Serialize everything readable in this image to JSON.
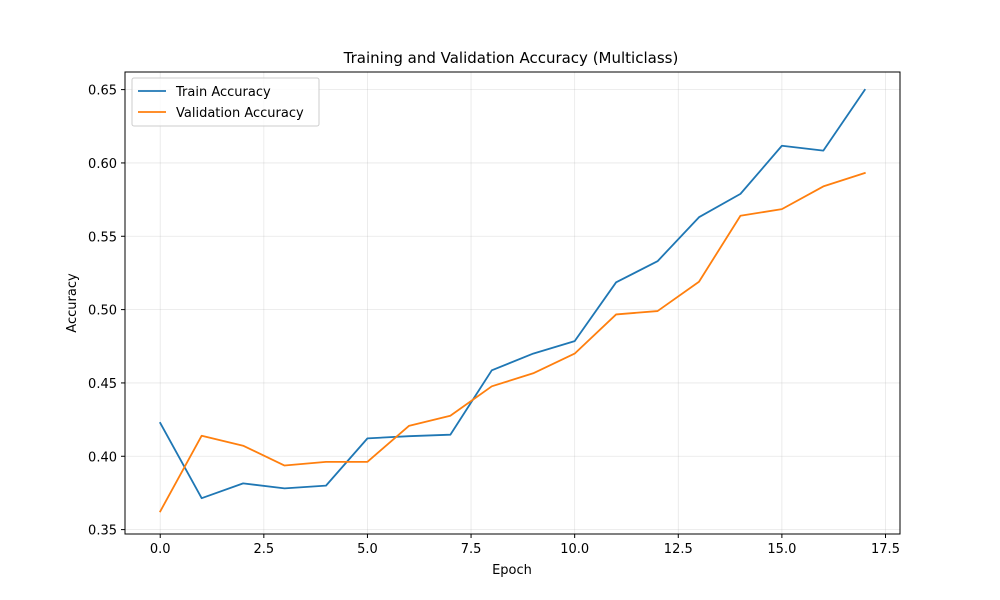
{
  "chart_data": {
    "type": "line",
    "title": "Training and Validation Accuracy (Multiclass)",
    "xlabel": "Epoch",
    "ylabel": "Accuracy",
    "xlim": [
      -0.85,
      17.85
    ],
    "ylim": [
      0.347,
      0.662
    ],
    "xticks": [
      0.0,
      2.5,
      5.0,
      7.5,
      10.0,
      12.5,
      15.0,
      17.5
    ],
    "xtick_labels": [
      "0.0",
      "2.5",
      "5.0",
      "7.5",
      "10.0",
      "12.5",
      "15.0",
      "17.5"
    ],
    "yticks": [
      0.35,
      0.4,
      0.45,
      0.5,
      0.55,
      0.6,
      0.65
    ],
    "ytick_labels": [
      "0.35",
      "0.40",
      "0.45",
      "0.50",
      "0.55",
      "0.60",
      "0.65"
    ],
    "grid": true,
    "legend_position": "upper-left",
    "x": [
      0,
      1,
      2,
      3,
      4,
      5,
      6,
      7,
      8,
      9,
      10,
      11,
      12,
      13,
      14,
      15,
      16,
      17
    ],
    "series": [
      {
        "name": "Train Accuracy",
        "color": "#1f77b4",
        "values": [
          0.4227,
          0.3714,
          0.3815,
          0.3781,
          0.38,
          0.4122,
          0.4137,
          0.4147,
          0.4586,
          0.47,
          0.4785,
          0.5186,
          0.533,
          0.563,
          0.5789,
          0.6117,
          0.6084,
          0.6498
        ]
      },
      {
        "name": "Validation Accuracy",
        "color": "#ff7f0e",
        "values": [
          0.3624,
          0.414,
          0.4072,
          0.3937,
          0.3962,
          0.3962,
          0.4207,
          0.4276,
          0.4477,
          0.4566,
          0.47,
          0.4967,
          0.499,
          0.519,
          0.564,
          0.5685,
          0.584,
          0.5931
        ]
      }
    ]
  }
}
